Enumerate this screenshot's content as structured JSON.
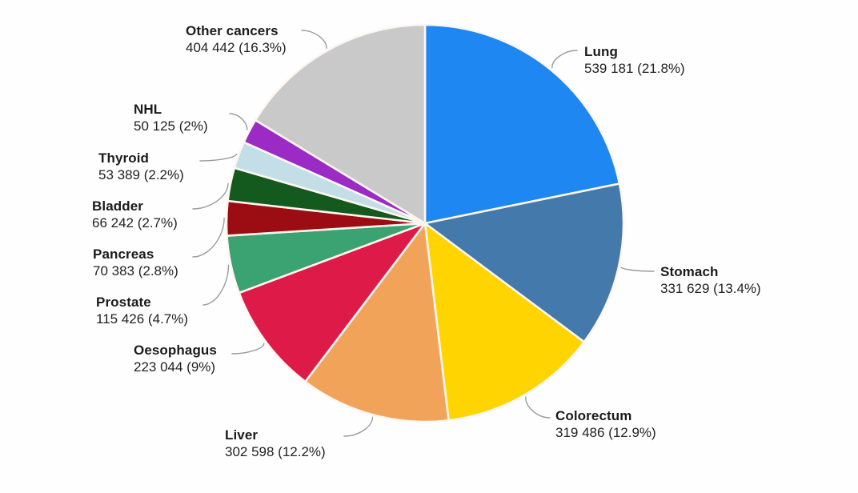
{
  "chart_data": {
    "type": "pie",
    "title": "",
    "start_angle": "12-oclock",
    "direction": "clockwise",
    "labels_layout": "outside-with-leader-lines",
    "slices": [
      {
        "label": "Lung",
        "value": 539181,
        "pct": 21.8,
        "value_text": "539 181 (21.8%)",
        "color": "#1e87f2"
      },
      {
        "label": "Stomach",
        "value": 331629,
        "pct": 13.4,
        "value_text": "331 629 (13.4%)",
        "color": "#4479ab"
      },
      {
        "label": "Colorectum",
        "value": 319486,
        "pct": 12.9,
        "value_text": "319 486 (12.9%)",
        "color": "#ffd400"
      },
      {
        "label": "Liver",
        "value": 302598,
        "pct": 12.2,
        "value_text": "302 598 (12.2%)",
        "color": "#f1a35a"
      },
      {
        "label": "Oesophagus",
        "value": 223044,
        "pct": 9.0,
        "value_text": "223 044 (9%)",
        "color": "#de1a48"
      },
      {
        "label": "Prostate",
        "value": 115426,
        "pct": 4.7,
        "value_text": "115 426 (4.7%)",
        "color": "#3aa371"
      },
      {
        "label": "Pancreas",
        "value": 70383,
        "pct": 2.8,
        "value_text": "70 383 (2.8%)",
        "color": "#9c0d13"
      },
      {
        "label": "Bladder",
        "value": 66242,
        "pct": 2.7,
        "value_text": "66 242 (2.7%)",
        "color": "#14591d"
      },
      {
        "label": "Thyroid",
        "value": 53389,
        "pct": 2.2,
        "value_text": "53 389 (2.2%)",
        "color": "#c3dee6"
      },
      {
        "label": "NHL",
        "value": 50125,
        "pct": 2.0,
        "value_text": "50 125 (2%)",
        "color": "#9b2bc4"
      },
      {
        "label": "Other cancers",
        "value": 404442,
        "pct": 16.3,
        "value_text": "404 442 (16.3%)",
        "color": "#c9c9c9"
      }
    ]
  },
  "colors": {
    "background": "#fefefe",
    "slice_border": "#fdf6f0",
    "leader_line": "#9b9b9b",
    "label_text": "#1b1b1b"
  }
}
